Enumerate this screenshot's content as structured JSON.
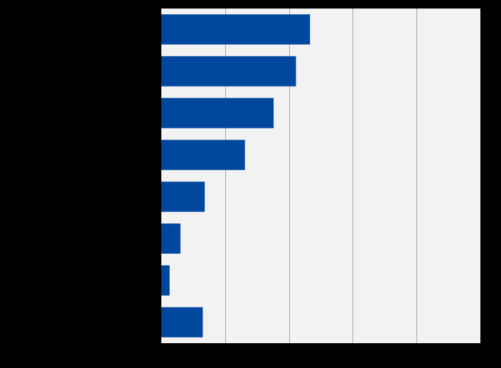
{
  "chart_data": {
    "type": "bar",
    "orientation": "horizontal",
    "categories": [
      "",
      "",
      "",
      "",
      "",
      "",
      "",
      ""
    ],
    "values": [
      23.3,
      21.1,
      17.6,
      13.1,
      6.8,
      3.0,
      1.3,
      6.5
    ],
    "xlim": [
      0,
      50
    ],
    "x_gridlines": [
      10,
      20,
      30,
      40
    ],
    "grid": true,
    "legend": "none",
    "colors": {
      "bar": "#00479d",
      "plot_background": "#f2f2f2",
      "gridline": "#a6a6a6",
      "page_background": "#000000"
    }
  }
}
